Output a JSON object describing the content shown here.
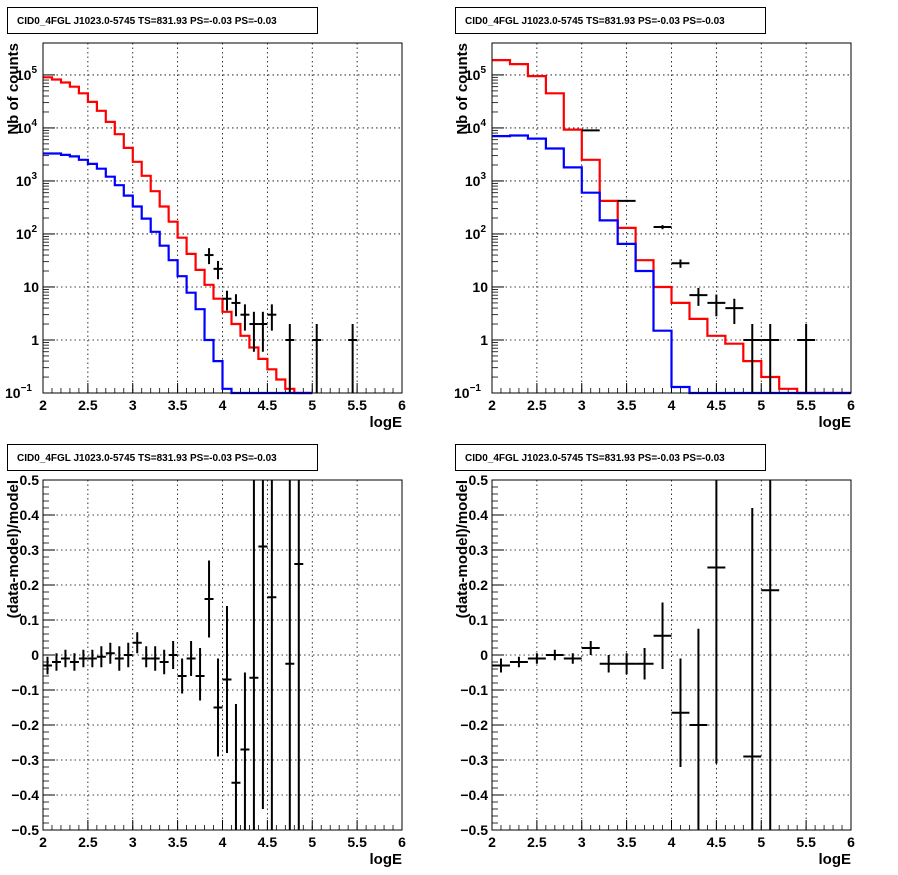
{
  "colors": {
    "model_total": "#ff0000",
    "model_source": "#0000ff",
    "data": "#000000"
  },
  "chart_data": [
    {
      "type": "line",
      "title": "CID0_4FGL J1023.0-5745 TS=831.93 PS=-0.03 PS=-0.03",
      "xlabel": "logE",
      "ylabel": "Nb of counts",
      "xlim": [
        2,
        6
      ],
      "ylim": [
        0.1,
        400000
      ],
      "yscale": "log",
      "grid": true,
      "xticks": [
        "2",
        "2.5",
        "3",
        "3.5",
        "4",
        "4.5",
        "5",
        "5.5",
        "6"
      ],
      "yticks": [
        {
          "base": "10",
          "exp": "−1"
        },
        {
          "base": "1",
          "exp": ""
        },
        {
          "base": "10",
          "exp": ""
        },
        {
          "base": "10",
          "exp": "2"
        },
        {
          "base": "10",
          "exp": "3"
        },
        {
          "base": "10",
          "exp": "4"
        },
        {
          "base": "10",
          "exp": "5"
        }
      ],
      "bin_edges_start": 2.0,
      "bin_width": 0.1,
      "series": [
        {
          "role": "model_total",
          "style": "step",
          "values": [
            90000,
            82000,
            72000,
            60000,
            45000,
            31000,
            21000,
            13000,
            7600,
            4200,
            2300,
            1250,
            640,
            330,
            170,
            85,
            42,
            21,
            11,
            6.0,
            3.4,
            2.0,
            1.2,
            0.72,
            0.44,
            0.28,
            0.18,
            0.12,
            0.1,
            0.1
          ]
        },
        {
          "role": "model_source",
          "style": "step",
          "values": [
            3300,
            3300,
            3100,
            2900,
            2500,
            2100,
            1700,
            1200,
            830,
            530,
            330,
            195,
            110,
            60,
            32,
            16,
            7.8,
            3.8,
            1.0,
            0.4,
            0.12,
            0.1,
            0.1,
            0.1,
            0.1,
            0.1,
            0.1,
            0.1,
            0.1,
            0.1
          ]
        },
        {
          "role": "data",
          "style": "errorbar",
          "points": [
            {
              "x": 3.85,
              "y": 40,
              "lo": 27,
              "hi": 54
            },
            {
              "x": 3.95,
              "y": 22,
              "lo": 14,
              "hi": 31
            },
            {
              "x": 4.05,
              "y": 6,
              "lo": 3.6,
              "hi": 8.5
            },
            {
              "x": 4.15,
              "y": 5,
              "lo": 2.8,
              "hi": 7.3
            },
            {
              "x": 4.25,
              "y": 3,
              "lo": 1.5,
              "hi": 4.7
            },
            {
              "x": 4.35,
              "y": 2,
              "lo": 0.6,
              "hi": 3.4
            },
            {
              "x": 4.45,
              "y": 2,
              "lo": 0.6,
              "hi": 3.4
            },
            {
              "x": 4.55,
              "y": 3,
              "lo": 1.5,
              "hi": 4.7
            },
            {
              "x": 4.75,
              "y": 1,
              "lo": 0.1,
              "hi": 2.0
            },
            {
              "x": 5.05,
              "y": 1,
              "lo": 0.1,
              "hi": 2.0
            },
            {
              "x": 5.45,
              "y": 1,
              "lo": 0.1,
              "hi": 2.0
            }
          ]
        }
      ]
    },
    {
      "type": "line",
      "title": "CID0_4FGL J1023.0-5745 TS=831.93 PS=-0.03 PS=-0.03",
      "xlabel": "logE",
      "ylabel": "Nb of counts",
      "xlim": [
        2,
        6
      ],
      "ylim": [
        0.1,
        400000
      ],
      "yscale": "log",
      "grid": true,
      "xticks": [
        "2",
        "2.5",
        "3",
        "3.5",
        "4",
        "4.5",
        "5",
        "5.5",
        "6"
      ],
      "yticks": [
        {
          "base": "10",
          "exp": "−1"
        },
        {
          "base": "1",
          "exp": ""
        },
        {
          "base": "10",
          "exp": ""
        },
        {
          "base": "10",
          "exp": "2"
        },
        {
          "base": "10",
          "exp": "3"
        },
        {
          "base": "10",
          "exp": "4"
        },
        {
          "base": "10",
          "exp": "5"
        }
      ],
      "bin_edges_start": 2.0,
      "bin_width": 0.2,
      "series": [
        {
          "role": "model_total",
          "style": "step",
          "values": [
            190000,
            160000,
            95000,
            45000,
            9300,
            2500,
            420,
            130,
            32,
            10,
            5.0,
            2.5,
            1.2,
            0.85,
            0.4,
            0.2,
            0.12,
            0.1,
            0.1,
            0.1
          ]
        },
        {
          "role": "model_source",
          "style": "step",
          "values": [
            7000,
            7200,
            6300,
            4100,
            1800,
            600,
            180,
            65,
            20,
            1.5,
            0.13,
            0.1,
            0.1,
            0.1,
            0.1,
            0.1,
            0.1,
            0.1,
            0.1,
            0.1
          ]
        },
        {
          "role": "data",
          "style": "errorbar",
          "points": [
            {
              "x": 3.1,
              "y": 9000,
              "lo": 8800,
              "hi": 9200
            },
            {
              "x": 3.5,
              "y": 420,
              "lo": 400,
              "hi": 440
            },
            {
              "x": 3.9,
              "y": 135,
              "lo": 123,
              "hi": 147
            },
            {
              "x": 4.1,
              "y": 28,
              "lo": 23,
              "hi": 33
            },
            {
              "x": 4.3,
              "y": 7,
              "lo": 4.4,
              "hi": 9.6
            },
            {
              "x": 4.5,
              "y": 5,
              "lo": 2.8,
              "hi": 7.2
            },
            {
              "x": 4.7,
              "y": 4,
              "lo": 2.0,
              "hi": 6.0
            },
            {
              "x": 4.9,
              "y": 1,
              "lo": 0.1,
              "hi": 2.0
            },
            {
              "x": 5.1,
              "y": 1,
              "lo": 0.1,
              "hi": 2.0
            },
            {
              "x": 5.5,
              "y": 1,
              "lo": 0.1,
              "hi": 2.0
            }
          ]
        }
      ]
    },
    {
      "type": "scatter",
      "title": "CID0_4FGL J1023.0-5745 TS=831.93 PS=-0.03 PS=-0.03",
      "xlabel": "logE",
      "ylabel": "(data-model)/model",
      "xlim": [
        2,
        6
      ],
      "ylim": [
        -0.5,
        0.5
      ],
      "yscale": "linear",
      "grid": true,
      "xticks": [
        "2",
        "2.5",
        "3",
        "3.5",
        "4",
        "4.5",
        "5",
        "5.5",
        "6"
      ],
      "yticks": [
        "−0.5",
        "−0.4",
        "−0.3",
        "−0.2",
        "−0.1",
        "0",
        "0.1",
        "0.2",
        "0.3",
        "0.4",
        "0.5"
      ],
      "bin_width": 0.1,
      "series": [
        {
          "role": "data",
          "style": "errorbar",
          "points": [
            {
              "x": 2.05,
              "y": -0.03,
              "lo": -0.055,
              "hi": -0.005
            },
            {
              "x": 2.15,
              "y": -0.02,
              "lo": -0.045,
              "hi": 0.005
            },
            {
              "x": 2.25,
              "y": -0.01,
              "lo": -0.035,
              "hi": 0.015
            },
            {
              "x": 2.35,
              "y": -0.02,
              "lo": -0.045,
              "hi": 0.005
            },
            {
              "x": 2.45,
              "y": -0.01,
              "lo": -0.035,
              "hi": 0.015
            },
            {
              "x": 2.55,
              "y": -0.01,
              "lo": -0.035,
              "hi": 0.015
            },
            {
              "x": 2.65,
              "y": -0.005,
              "lo": -0.035,
              "hi": 0.025
            },
            {
              "x": 2.75,
              "y": 0.005,
              "lo": -0.025,
              "hi": 0.035
            },
            {
              "x": 2.85,
              "y": -0.01,
              "lo": -0.045,
              "hi": 0.025
            },
            {
              "x": 2.95,
              "y": 0.0,
              "lo": -0.035,
              "hi": 0.035
            },
            {
              "x": 3.05,
              "y": 0.035,
              "lo": 0.005,
              "hi": 0.065
            },
            {
              "x": 3.15,
              "y": -0.01,
              "lo": -0.035,
              "hi": 0.025
            },
            {
              "x": 3.25,
              "y": -0.01,
              "lo": -0.045,
              "hi": 0.025
            },
            {
              "x": 3.35,
              "y": -0.02,
              "lo": -0.055,
              "hi": 0.015
            },
            {
              "x": 3.45,
              "y": 0.0,
              "lo": -0.04,
              "hi": 0.04
            },
            {
              "x": 3.55,
              "y": -0.06,
              "lo": -0.11,
              "hi": -0.01
            },
            {
              "x": 3.65,
              "y": -0.01,
              "lo": -0.06,
              "hi": 0.04
            },
            {
              "x": 3.75,
              "y": -0.06,
              "lo": -0.13,
              "hi": 0.02
            },
            {
              "x": 3.85,
              "y": 0.16,
              "lo": 0.05,
              "hi": 0.27
            },
            {
              "x": 3.95,
              "y": -0.15,
              "lo": -0.29,
              "hi": -0.01
            },
            {
              "x": 4.05,
              "y": -0.07,
              "lo": -0.28,
              "hi": 0.14
            },
            {
              "x": 4.15,
              "y": -0.365,
              "lo": -0.5,
              "hi": -0.14
            },
            {
              "x": 4.25,
              "y": -0.27,
              "lo": -0.5,
              "hi": -0.05
            },
            {
              "x": 4.35,
              "y": -0.065,
              "lo": -0.5,
              "hi": 0.5
            },
            {
              "x": 4.45,
              "y": 0.31,
              "lo": -0.44,
              "hi": 0.5
            },
            {
              "x": 4.55,
              "y": 0.165,
              "lo": -0.5,
              "hi": 0.5
            },
            {
              "x": 4.75,
              "y": -0.025,
              "lo": -0.5,
              "hi": 0.5
            },
            {
              "x": 4.85,
              "y": 0.26,
              "lo": -0.5,
              "hi": 0.5
            }
          ]
        }
      ]
    },
    {
      "type": "scatter",
      "title": "CID0_4FGL J1023.0-5745 TS=831.93 PS=-0.03 PS=-0.03",
      "xlabel": "logE",
      "ylabel": "(data-model)/model",
      "xlim": [
        2,
        6
      ],
      "ylim": [
        -0.5,
        0.5
      ],
      "yscale": "linear",
      "grid": true,
      "xticks": [
        "2",
        "2.5",
        "3",
        "3.5",
        "4",
        "4.5",
        "5",
        "5.5",
        "6"
      ],
      "yticks": [
        "−0.5",
        "−0.4",
        "−0.3",
        "−0.2",
        "−0.1",
        "0",
        "0.1",
        "0.2",
        "0.3",
        "0.4",
        "0.5"
      ],
      "bin_width": 0.2,
      "series": [
        {
          "role": "data",
          "style": "errorbar",
          "points": [
            {
              "x": 2.1,
              "y": -0.03,
              "lo": -0.05,
              "hi": -0.01
            },
            {
              "x": 2.3,
              "y": -0.02,
              "lo": -0.035,
              "hi": -0.005
            },
            {
              "x": 2.5,
              "y": -0.01,
              "lo": -0.025,
              "hi": 0.005
            },
            {
              "x": 2.7,
              "y": 0.0,
              "lo": -0.015,
              "hi": 0.015
            },
            {
              "x": 2.9,
              "y": -0.01,
              "lo": -0.025,
              "hi": 0.005
            },
            {
              "x": 3.1,
              "y": 0.02,
              "lo": 0.0,
              "hi": 0.04
            },
            {
              "x": 3.3,
              "y": -0.025,
              "lo": -0.05,
              "hi": 0.0
            },
            {
              "x": 3.5,
              "y": -0.025,
              "lo": -0.055,
              "hi": 0.005
            },
            {
              "x": 3.7,
              "y": -0.025,
              "lo": -0.07,
              "hi": 0.02
            },
            {
              "x": 3.9,
              "y": 0.055,
              "lo": -0.04,
              "hi": 0.15
            },
            {
              "x": 4.1,
              "y": -0.165,
              "lo": -0.32,
              "hi": -0.01
            },
            {
              "x": 4.3,
              "y": -0.2,
              "lo": -0.5,
              "hi": 0.075
            },
            {
              "x": 4.5,
              "y": 0.25,
              "lo": -0.31,
              "hi": 0.5
            },
            {
              "x": 4.9,
              "y": -0.29,
              "lo": -0.5,
              "hi": 0.42
            },
            {
              "x": 5.1,
              "y": 0.185,
              "lo": -0.5,
              "hi": 0.5
            }
          ]
        }
      ]
    }
  ]
}
